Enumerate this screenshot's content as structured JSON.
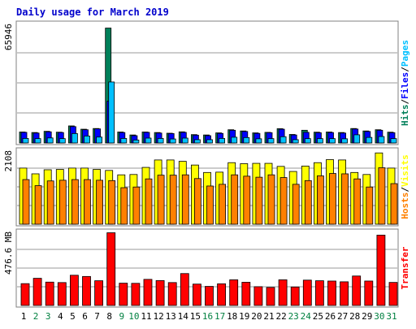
{
  "title": "Daily usage for March 2019",
  "colors": {
    "background": "#ffffff",
    "frame": "#808080",
    "grid": "#9a9a9a",
    "title": "#0000cc",
    "hits": "#00805a",
    "files": "#0000ff",
    "pages": "#00c0ff",
    "visits": "#ffff00",
    "hosts": "#ff8000",
    "transfer": "#ff0000",
    "outline": "#000000",
    "day_weekday": "#000000",
    "day_weekend": "#008040"
  },
  "chart_data": [
    {
      "type": "bar",
      "name": "hits-files-pages",
      "ylabel_parts": [
        "Hits",
        "Files",
        "Pages"
      ],
      "ylabel_separator": "/",
      "max_label": "65946",
      "ylim": [
        0,
        69000
      ],
      "grid": true,
      "categories": [
        "1",
        "2",
        "3",
        "4",
        "5",
        "6",
        "7",
        "8",
        "9",
        "10",
        "11",
        "12",
        "13",
        "14",
        "15",
        "16",
        "17",
        "18",
        "19",
        "20",
        "21",
        "22",
        "23",
        "24",
        "25",
        "26",
        "27",
        "28",
        "29",
        "30",
        "31"
      ],
      "series": [
        {
          "key": "hits",
          "values": [
            6300,
            6000,
            6700,
            6200,
            9800,
            7900,
            8300,
            65946,
            6300,
            4600,
            6300,
            6000,
            5600,
            6400,
            4800,
            4600,
            5800,
            7600,
            6900,
            5800,
            6100,
            8200,
            4900,
            7300,
            6200,
            6300,
            6000,
            8300,
            6900,
            7600,
            6200
          ]
        },
        {
          "key": "files",
          "values": [
            6100,
            5700,
            6400,
            6000,
            9400,
            7600,
            8100,
            24000,
            6000,
            4200,
            6100,
            5700,
            5400,
            6100,
            4500,
            4200,
            5500,
            7300,
            6600,
            5500,
            5900,
            7900,
            4600,
            6100,
            5900,
            6000,
            5700,
            8000,
            6600,
            7300,
            5900
          ]
        },
        {
          "key": "pages",
          "values": [
            2600,
            2500,
            2900,
            2500,
            5400,
            4000,
            3400,
            35000,
            2600,
            1700,
            2800,
            2600,
            2300,
            2800,
            1900,
            1900,
            2600,
            3300,
            3100,
            2400,
            2500,
            3600,
            1900,
            2500,
            2500,
            2500,
            2400,
            4700,
            3200,
            3700,
            2500
          ]
        }
      ]
    },
    {
      "type": "bar",
      "name": "visits-hosts",
      "ylabel_parts": [
        "Hosts",
        "Visits"
      ],
      "ylabel_separator": "/",
      "max_label": "2108",
      "ylim": [
        0,
        2210
      ],
      "grid": true,
      "categories": [
        "1",
        "2",
        "3",
        "4",
        "5",
        "6",
        "7",
        "8",
        "9",
        "10",
        "11",
        "12",
        "13",
        "14",
        "15",
        "16",
        "17",
        "18",
        "19",
        "20",
        "21",
        "22",
        "23",
        "24",
        "25",
        "26",
        "27",
        "28",
        "29",
        "30",
        "31"
      ],
      "series": [
        {
          "key": "visits",
          "values": [
            1660,
            1490,
            1610,
            1620,
            1660,
            1660,
            1620,
            1590,
            1460,
            1470,
            1680,
            1900,
            1900,
            1860,
            1750,
            1530,
            1540,
            1820,
            1790,
            1800,
            1800,
            1710,
            1560,
            1720,
            1820,
            1910,
            1900,
            1530,
            1470,
            2108,
            1660
          ]
        },
        {
          "key": "hosts",
          "values": [
            1320,
            1140,
            1280,
            1300,
            1320,
            1320,
            1300,
            1290,
            1080,
            1100,
            1340,
            1450,
            1450,
            1460,
            1350,
            1130,
            1180,
            1460,
            1420,
            1390,
            1460,
            1380,
            1180,
            1290,
            1430,
            1500,
            1490,
            1340,
            1100,
            1670,
            1200
          ]
        }
      ]
    },
    {
      "type": "bar",
      "name": "transfer",
      "ylabel": "Transfer",
      "max_label": "476.6 MB",
      "ylim": [
        0,
        490
      ],
      "grid": true,
      "categories": [
        "1",
        "2",
        "3",
        "4",
        "5",
        "6",
        "7",
        "8",
        "9",
        "10",
        "11",
        "12",
        "13",
        "14",
        "15",
        "16",
        "17",
        "18",
        "19",
        "20",
        "21",
        "22",
        "23",
        "24",
        "25",
        "26",
        "27",
        "28",
        "29",
        "30",
        "31"
      ],
      "weekend_days": [
        "2",
        "3",
        "9",
        "10",
        "16",
        "17",
        "23",
        "24",
        "30",
        "31"
      ],
      "series": [
        {
          "key": "transfer",
          "values": [
            143,
            178,
            153,
            150,
            198,
            190,
            162,
            476.6,
            146,
            145,
            171,
            163,
            150,
            209,
            140,
            125,
            142,
            168,
            152,
            123,
            118,
            168,
            121,
            166,
            162,
            160,
            155,
            193,
            160,
            461,
            151
          ]
        }
      ]
    }
  ]
}
